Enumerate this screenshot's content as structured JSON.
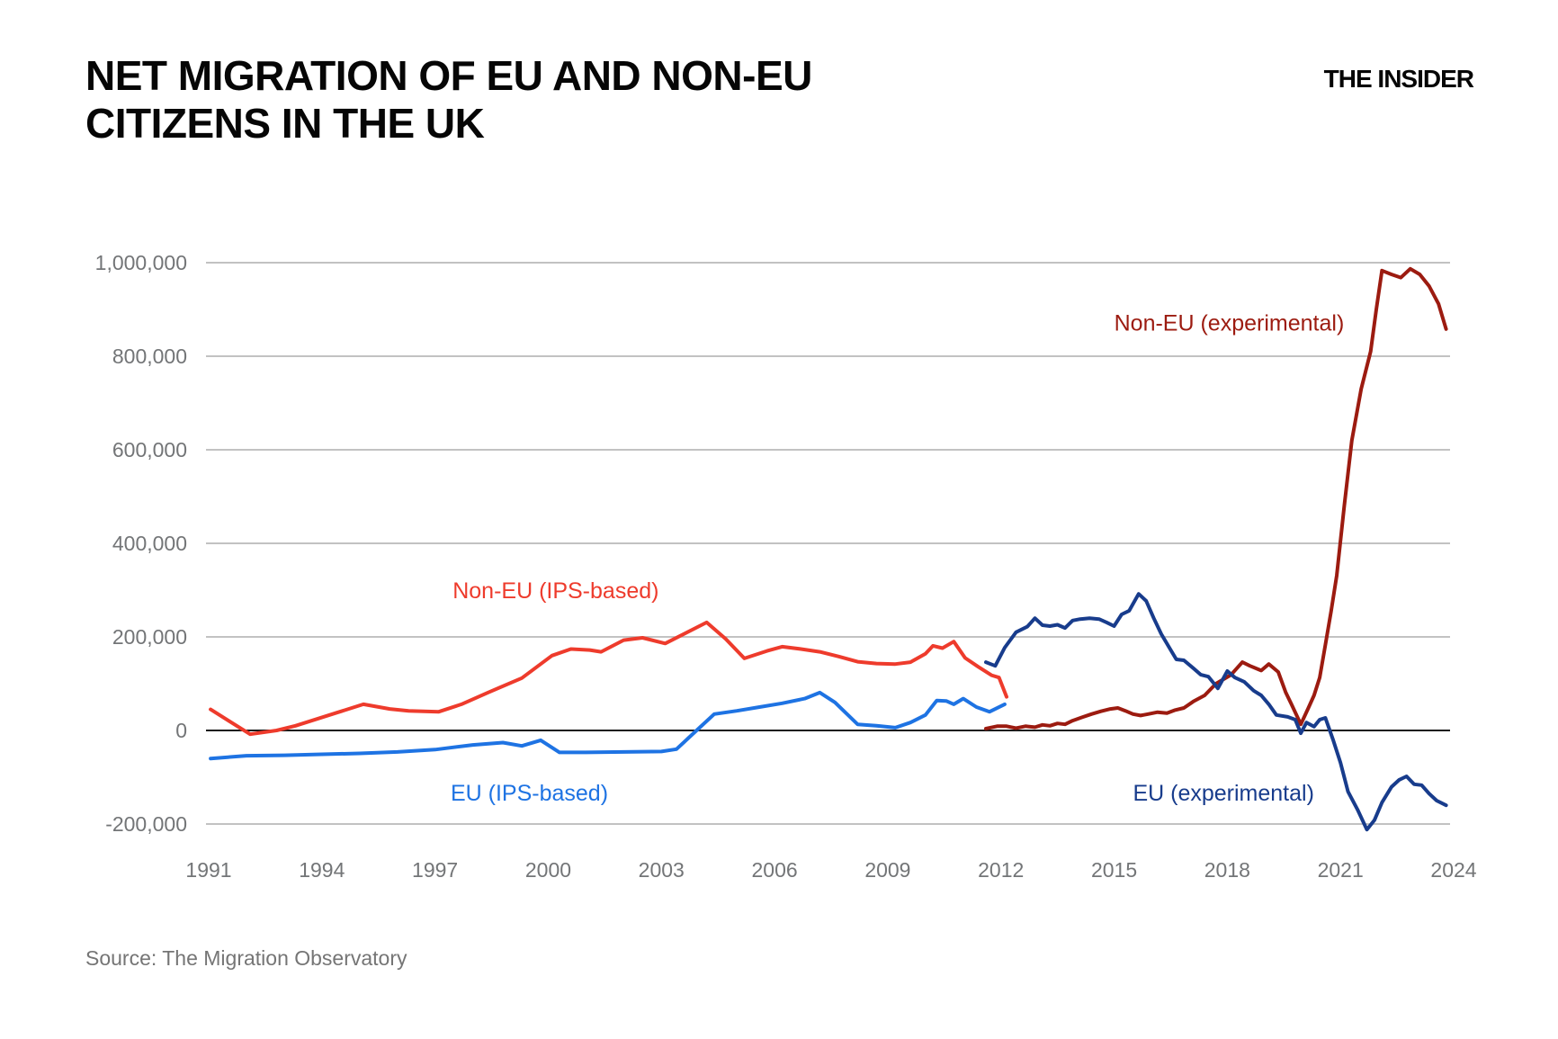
{
  "header": {
    "title": "NET MIGRATION OF EU AND NON-EU CITIZENS IN THE UK",
    "brand": "THE INSIDER"
  },
  "footer": {
    "source": "Source: The Migration Observatory"
  },
  "chart_data": {
    "type": "line",
    "title": "NET MIGRATION OF EU AND NON-EU CITIZENS IN THE UK",
    "xlabel": "",
    "ylabel": "",
    "grid": "horizontal",
    "legend_position": "inline-annotations",
    "x_axis": {
      "ticks": [
        "1991",
        "1994",
        "1997",
        "2000",
        "2003",
        "2006",
        "2009",
        "2012",
        "2015",
        "2018",
        "2021",
        "2024"
      ],
      "tick_years": [
        1991,
        1994,
        1997,
        2000,
        2003,
        2006,
        2009,
        2012,
        2015,
        2018,
        2021,
        2024
      ],
      "range": [
        1990.8,
        2024.9
      ]
    },
    "y_axis": {
      "tick_labels": [
        "1,000,000",
        "800,000",
        "600,000",
        "400,000",
        "200,000",
        "0",
        "-200,000"
      ],
      "tick_values": [
        1000000,
        800000,
        600000,
        400000,
        200000,
        0,
        -200000
      ],
      "range": [
        -250000,
        1060000
      ]
    },
    "colors": {
      "non_eu_ips": "#EE3B2C",
      "eu_ips": "#1E73E3",
      "non_eu_experimental": "#9C1B10",
      "eu_experimental": "#183C8C",
      "gridline": "#ADADAD",
      "zero_line": "#1A1A1A",
      "tick_text": "#737577"
    },
    "series": [
      {
        "id": "non-eu-ips",
        "name": "Non-EU (IPS-based)",
        "color": "#EE3B2C",
        "label_anchor": {
          "x_year": 2000.2,
          "y_value": 300000
        },
        "points": [
          [
            1991.05,
            45000
          ],
          [
            1992.1,
            -8000
          ],
          [
            1992.8,
            0
          ],
          [
            1993.3,
            10000
          ],
          [
            1994.4,
            38000
          ],
          [
            1995.1,
            56000
          ],
          [
            1995.8,
            46000
          ],
          [
            1996.3,
            42000
          ],
          [
            1997.1,
            40000
          ],
          [
            1997.7,
            56000
          ],
          [
            1998.4,
            81000
          ],
          [
            1999.3,
            112000
          ],
          [
            2000.1,
            160000
          ],
          [
            2000.6,
            174000
          ],
          [
            2001.1,
            172000
          ],
          [
            2001.4,
            168000
          ],
          [
            2002.0,
            193000
          ],
          [
            2002.5,
            198000
          ],
          [
            2003.1,
            186000
          ],
          [
            2004.2,
            231000
          ],
          [
            2004.7,
            196000
          ],
          [
            2005.2,
            154000
          ],
          [
            2005.8,
            170000
          ],
          [
            2006.2,
            179000
          ],
          [
            2006.7,
            174000
          ],
          [
            2007.2,
            168000
          ],
          [
            2007.7,
            158000
          ],
          [
            2008.2,
            147000
          ],
          [
            2008.7,
            143000
          ],
          [
            2009.2,
            142000
          ],
          [
            2009.6,
            146000
          ],
          [
            2010.0,
            164000
          ],
          [
            2010.2,
            181000
          ],
          [
            2010.45,
            176000
          ],
          [
            2010.75,
            190000
          ],
          [
            2011.05,
            155000
          ],
          [
            2011.4,
            136000
          ],
          [
            2011.75,
            118000
          ],
          [
            2011.95,
            113000
          ],
          [
            2012.15,
            72000
          ]
        ]
      },
      {
        "id": "eu-ips",
        "name": "EU (IPS-based)",
        "color": "#1E73E3",
        "label_anchor": {
          "x_year": 1999.5,
          "y_value": -133000
        },
        "points": [
          [
            1991.05,
            -60000
          ],
          [
            1992.0,
            -54000
          ],
          [
            1993.0,
            -53000
          ],
          [
            1994.0,
            -51000
          ],
          [
            1995.0,
            -49000
          ],
          [
            1996.0,
            -46000
          ],
          [
            1997.0,
            -41000
          ],
          [
            1998.0,
            -31000
          ],
          [
            1998.8,
            -26000
          ],
          [
            1999.3,
            -33000
          ],
          [
            1999.8,
            -21000
          ],
          [
            2000.3,
            -47000
          ],
          [
            2001.0,
            -47000
          ],
          [
            2002.0,
            -46000
          ],
          [
            2003.0,
            -45000
          ],
          [
            2003.4,
            -40000
          ],
          [
            2004.0,
            5000
          ],
          [
            2004.4,
            35000
          ],
          [
            2005.0,
            42000
          ],
          [
            2005.6,
            50000
          ],
          [
            2006.2,
            58000
          ],
          [
            2006.8,
            68000
          ],
          [
            2007.2,
            81000
          ],
          [
            2007.6,
            60000
          ],
          [
            2008.2,
            13000
          ],
          [
            2008.7,
            10000
          ],
          [
            2009.2,
            6000
          ],
          [
            2009.6,
            17000
          ],
          [
            2010.0,
            33000
          ],
          [
            2010.3,
            64000
          ],
          [
            2010.55,
            63000
          ],
          [
            2010.75,
            56000
          ],
          [
            2011.0,
            68000
          ],
          [
            2011.35,
            50000
          ],
          [
            2011.7,
            40000
          ],
          [
            2012.1,
            56000
          ]
        ]
      },
      {
        "id": "non-eu-experimental",
        "name": "Non-EU (experimental)",
        "color": "#9C1B10",
        "label_anchor": {
          "x_year": 2018.05,
          "y_value": 872000
        },
        "points": [
          [
            2011.6,
            4000
          ],
          [
            2011.9,
            9000
          ],
          [
            2012.15,
            9000
          ],
          [
            2012.4,
            5000
          ],
          [
            2012.65,
            9000
          ],
          [
            2012.9,
            7000
          ],
          [
            2013.1,
            12000
          ],
          [
            2013.3,
            10000
          ],
          [
            2013.5,
            15000
          ],
          [
            2013.7,
            13000
          ],
          [
            2013.9,
            21000
          ],
          [
            2014.15,
            28000
          ],
          [
            2014.4,
            35000
          ],
          [
            2014.65,
            41000
          ],
          [
            2014.9,
            46000
          ],
          [
            2015.1,
            48000
          ],
          [
            2015.3,
            42000
          ],
          [
            2015.5,
            35000
          ],
          [
            2015.7,
            32000
          ],
          [
            2015.9,
            35000
          ],
          [
            2016.15,
            39000
          ],
          [
            2016.4,
            37000
          ],
          [
            2016.6,
            43000
          ],
          [
            2016.85,
            48000
          ],
          [
            2017.1,
            62000
          ],
          [
            2017.4,
            75000
          ],
          [
            2017.7,
            100000
          ],
          [
            2018.1,
            119000
          ],
          [
            2018.4,
            146000
          ],
          [
            2018.6,
            138000
          ],
          [
            2018.9,
            128000
          ],
          [
            2019.1,
            142000
          ],
          [
            2019.35,
            125000
          ],
          [
            2019.55,
            81000
          ],
          [
            2019.7,
            56000
          ],
          [
            2019.95,
            13000
          ],
          [
            2020.15,
            48000
          ],
          [
            2020.3,
            75000
          ],
          [
            2020.45,
            113000
          ],
          [
            2020.6,
            183000
          ],
          [
            2020.75,
            254000
          ],
          [
            2020.9,
            331000
          ],
          [
            2021.1,
            480000
          ],
          [
            2021.3,
            620000
          ],
          [
            2021.55,
            730000
          ],
          [
            2021.8,
            810000
          ],
          [
            2021.95,
            900000
          ],
          [
            2022.1,
            983000
          ],
          [
            2022.35,
            975000
          ],
          [
            2022.6,
            968000
          ],
          [
            2022.85,
            987000
          ],
          [
            2023.1,
            975000
          ],
          [
            2023.35,
            950000
          ],
          [
            2023.6,
            912000
          ],
          [
            2023.8,
            858000
          ]
        ]
      },
      {
        "id": "eu-experimental",
        "name": "EU (experimental)",
        "color": "#183C8C",
        "label_anchor": {
          "x_year": 2017.9,
          "y_value": -133000
        },
        "points": [
          [
            2011.6,
            146000
          ],
          [
            2011.85,
            138000
          ],
          [
            2012.1,
            177000
          ],
          [
            2012.4,
            210000
          ],
          [
            2012.7,
            222000
          ],
          [
            2012.9,
            240000
          ],
          [
            2013.1,
            225000
          ],
          [
            2013.3,
            223000
          ],
          [
            2013.5,
            226000
          ],
          [
            2013.7,
            219000
          ],
          [
            2013.9,
            235000
          ],
          [
            2014.1,
            238000
          ],
          [
            2014.35,
            240000
          ],
          [
            2014.6,
            238000
          ],
          [
            2014.8,
            231000
          ],
          [
            2015.0,
            223000
          ],
          [
            2015.2,
            248000
          ],
          [
            2015.4,
            256000
          ],
          [
            2015.65,
            292000
          ],
          [
            2015.85,
            277000
          ],
          [
            2016.05,
            240000
          ],
          [
            2016.25,
            206000
          ],
          [
            2016.5,
            172000
          ],
          [
            2016.65,
            152000
          ],
          [
            2016.85,
            150000
          ],
          [
            2017.1,
            133000
          ],
          [
            2017.3,
            119000
          ],
          [
            2017.5,
            115000
          ],
          [
            2017.75,
            90000
          ],
          [
            2018.0,
            127000
          ],
          [
            2018.2,
            113000
          ],
          [
            2018.45,
            104000
          ],
          [
            2018.7,
            85000
          ],
          [
            2018.9,
            75000
          ],
          [
            2019.1,
            56000
          ],
          [
            2019.3,
            33000
          ],
          [
            2019.6,
            29000
          ],
          [
            2019.8,
            23000
          ],
          [
            2019.95,
            -6000
          ],
          [
            2020.1,
            17000
          ],
          [
            2020.3,
            8000
          ],
          [
            2020.45,
            23000
          ],
          [
            2020.6,
            27000
          ],
          [
            2020.8,
            -19000
          ],
          [
            2021.0,
            -69000
          ],
          [
            2021.2,
            -131000
          ],
          [
            2021.45,
            -169000
          ],
          [
            2021.7,
            -212000
          ],
          [
            2021.9,
            -192000
          ],
          [
            2022.1,
            -154000
          ],
          [
            2022.35,
            -121000
          ],
          [
            2022.55,
            -106000
          ],
          [
            2022.75,
            -98000
          ],
          [
            2022.95,
            -115000
          ],
          [
            2023.15,
            -117000
          ],
          [
            2023.35,
            -135000
          ],
          [
            2023.55,
            -150000
          ],
          [
            2023.8,
            -160000
          ]
        ]
      }
    ]
  }
}
